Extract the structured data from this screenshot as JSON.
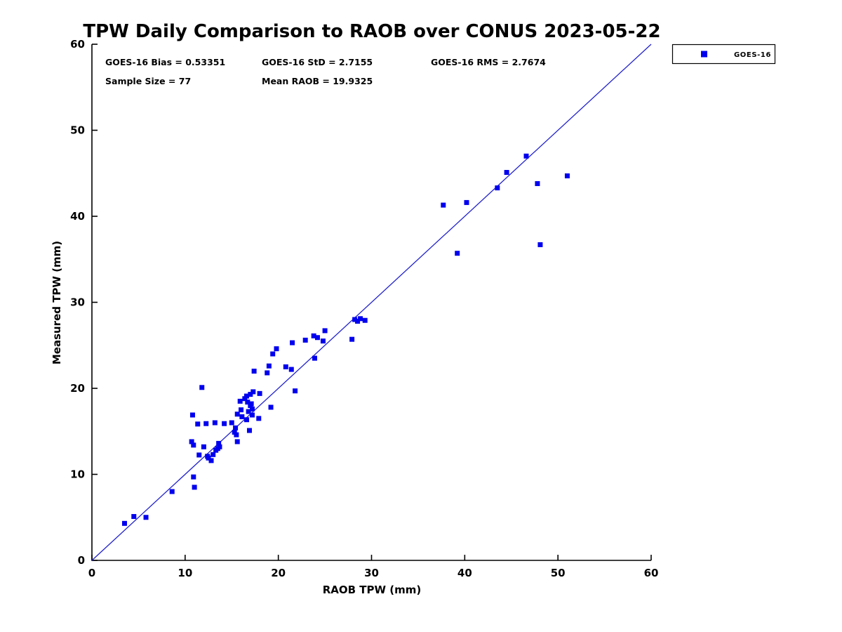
{
  "chart_data": {
    "type": "scatter",
    "title": "TPW Daily Comparison to RAOB over CONUS 2023-05-22",
    "xlabel": "RAOB TPW (mm)",
    "ylabel": "Measured TPW (mm)",
    "xlim": [
      0,
      60
    ],
    "ylim": [
      0,
      60
    ],
    "xticks": [
      0,
      10,
      20,
      30,
      40,
      50,
      60
    ],
    "yticks": [
      0,
      10,
      20,
      30,
      40,
      50,
      60
    ],
    "grid": false,
    "legend_position": "outside-top-right",
    "identity_line": {
      "from": [
        0,
        0
      ],
      "to": [
        60,
        60
      ],
      "color": "#2222CC"
    },
    "annotations": [
      "GOES-16 Bias = 0.53351",
      "GOES-16 StD = 2.7155",
      "GOES-16 RMS = 2.7674",
      "Sample Size = 77",
      "Mean RAOB = 19.9325"
    ],
    "sample_size": 77,
    "series": [
      {
        "name": "GOES-16",
        "marker": "square",
        "color": "#0000EE",
        "points": [
          [
            3.5,
            4.3
          ],
          [
            4.5,
            5.1
          ],
          [
            5.8,
            5.0
          ],
          [
            8.6,
            8.0
          ],
          [
            10.9,
            9.7
          ],
          [
            11.0,
            8.5
          ],
          [
            10.8,
            16.9
          ],
          [
            11.8,
            20.1
          ],
          [
            11.35,
            15.85
          ],
          [
            12.25,
            15.9
          ],
          [
            13.2,
            16.0
          ],
          [
            14.2,
            15.9
          ],
          [
            15.0,
            16.0
          ],
          [
            10.7,
            13.8
          ],
          [
            10.9,
            13.4
          ],
          [
            12.0,
            13.2
          ],
          [
            11.5,
            12.25
          ],
          [
            12.5,
            11.9
          ],
          [
            12.8,
            11.6
          ],
          [
            13.0,
            12.3
          ],
          [
            13.3,
            12.8
          ],
          [
            13.7,
            13.2
          ],
          [
            13.6,
            13.6
          ],
          [
            15.3,
            14.9
          ],
          [
            15.5,
            14.6
          ],
          [
            15.4,
            15.4
          ],
          [
            15.6,
            13.8
          ],
          [
            15.9,
            18.5
          ],
          [
            16.6,
            19.1
          ],
          [
            17.0,
            19.3
          ],
          [
            17.3,
            19.6
          ],
          [
            18.0,
            19.4
          ],
          [
            16.7,
            18.4
          ],
          [
            17.1,
            18.2
          ],
          [
            17.2,
            17.6
          ],
          [
            16.8,
            17.3
          ],
          [
            16.0,
            17.5
          ],
          [
            15.6,
            17.0
          ],
          [
            16.1,
            16.7
          ],
          [
            16.6,
            16.35
          ],
          [
            17.2,
            16.9
          ],
          [
            17.9,
            16.5
          ],
          [
            19.2,
            17.8
          ],
          [
            16.9,
            15.1
          ],
          [
            17.4,
            22.0
          ],
          [
            18.8,
            21.8
          ],
          [
            19.0,
            22.6
          ],
          [
            19.4,
            24.0
          ],
          [
            19.8,
            24.6
          ],
          [
            20.8,
            22.5
          ],
          [
            21.4,
            22.2
          ],
          [
            21.8,
            19.7
          ],
          [
            21.5,
            25.3
          ],
          [
            22.9,
            25.6
          ],
          [
            23.8,
            26.1
          ],
          [
            24.2,
            25.9
          ],
          [
            25.0,
            26.7
          ],
          [
            24.8,
            25.5
          ],
          [
            23.9,
            23.5
          ],
          [
            27.9,
            25.7
          ],
          [
            28.2,
            28.0
          ],
          [
            28.8,
            28.1
          ],
          [
            29.3,
            27.9
          ],
          [
            37.7,
            41.3
          ],
          [
            40.2,
            41.6
          ],
          [
            43.5,
            43.3
          ],
          [
            44.5,
            45.1
          ],
          [
            46.6,
            47.0
          ],
          [
            47.8,
            43.8
          ],
          [
            51.0,
            44.7
          ],
          [
            48.1,
            36.7
          ],
          [
            39.2,
            35.7
          ],
          [
            16.4,
            18.8
          ],
          [
            17.0,
            18.0
          ],
          [
            28.5,
            27.8
          ],
          [
            13.5,
            13.0
          ],
          [
            12.4,
            12.1
          ]
        ]
      }
    ]
  }
}
